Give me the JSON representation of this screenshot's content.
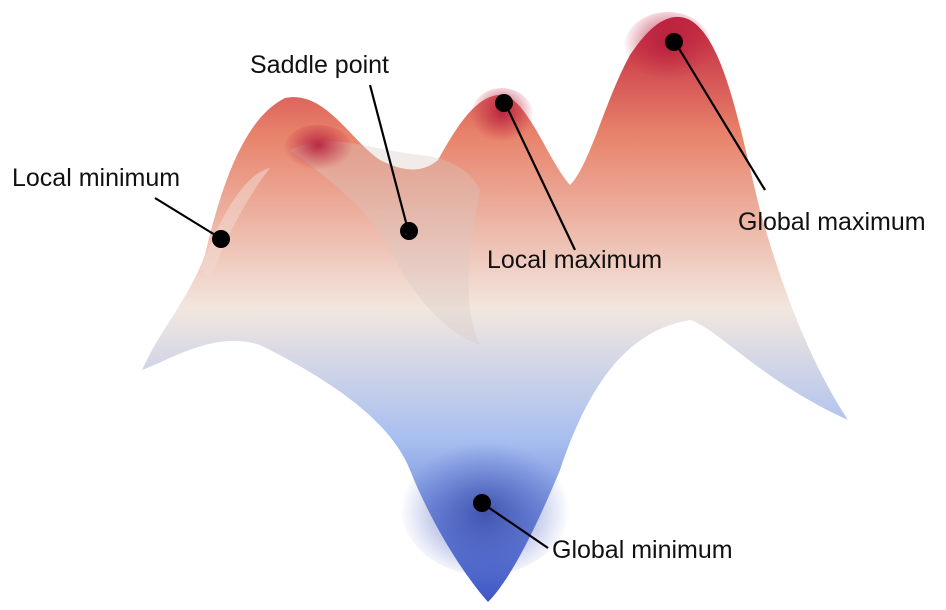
{
  "colors": {
    "high": "#c0233f",
    "mid_high": "#e8826a",
    "neutral": "#f2e7df",
    "mid_low": "#a8bff0",
    "low": "#3d56c4",
    "marker": "#000000",
    "background": "#ffffff"
  },
  "annotations": {
    "local_minimum": "Local minimum",
    "saddle_point": "Saddle point",
    "local_maximum": "Local maximum",
    "global_maximum": "Global maximum",
    "global_minimum": "Global minimum"
  }
}
